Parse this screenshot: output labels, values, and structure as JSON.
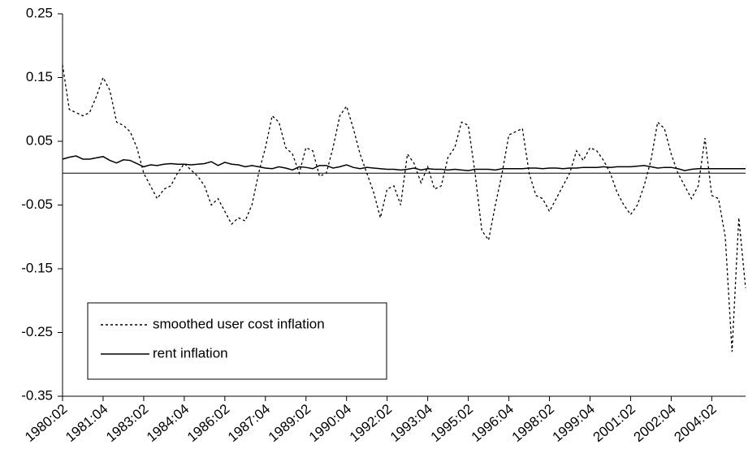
{
  "chart_data": {
    "type": "line",
    "categories": [
      "1980:02",
      null,
      null,
      null,
      null,
      null,
      "1981:04",
      null,
      null,
      null,
      null,
      null,
      "1983:02",
      null,
      null,
      null,
      null,
      null,
      "1984:04",
      null,
      null,
      null,
      null,
      null,
      "1986:02",
      null,
      null,
      null,
      null,
      null,
      "1987:04",
      null,
      null,
      null,
      null,
      null,
      "1989:02",
      null,
      null,
      null,
      null,
      null,
      "1990:04",
      null,
      null,
      null,
      null,
      null,
      "1992:02",
      null,
      null,
      null,
      null,
      null,
      "1993:04",
      null,
      null,
      null,
      null,
      null,
      "1995:02",
      null,
      null,
      null,
      null,
      null,
      "1996:04",
      null,
      null,
      null,
      null,
      null,
      "1998:02",
      null,
      null,
      null,
      null,
      null,
      "1999:04",
      null,
      null,
      null,
      null,
      null,
      "2001:02",
      null,
      null,
      null,
      null,
      null,
      "2002:04",
      null,
      null,
      null,
      null,
      null,
      "2004:02",
      null,
      null,
      null,
      null,
      null
    ],
    "series": [
      {
        "name": "smoothed user cost inflation",
        "color": "#000000",
        "style": "dotted",
        "values": [
          0.17,
          0.1,
          0.095,
          0.09,
          0.095,
          0.12,
          0.15,
          0.13,
          0.08,
          0.075,
          0.065,
          0.04,
          0.0,
          -0.02,
          -0.04,
          -0.025,
          -0.02,
          0.0,
          0.015,
          0.005,
          -0.005,
          -0.02,
          -0.05,
          -0.04,
          -0.06,
          -0.08,
          -0.07,
          -0.075,
          -0.05,
          0.0,
          0.04,
          0.09,
          0.08,
          0.04,
          0.03,
          0.0,
          0.04,
          0.035,
          -0.005,
          0.0,
          0.04,
          0.09,
          0.105,
          0.07,
          0.03,
          0.0,
          -0.03,
          -0.07,
          -0.025,
          -0.02,
          -0.05,
          0.03,
          0.015,
          -0.015,
          0.01,
          -0.025,
          -0.02,
          0.025,
          0.04,
          0.08,
          0.075,
          0.0,
          -0.09,
          -0.105,
          -0.05,
          0.0,
          0.06,
          0.065,
          0.07,
          0.0,
          -0.035,
          -0.04,
          -0.06,
          -0.04,
          -0.02,
          0.0,
          0.035,
          0.02,
          0.04,
          0.035,
          0.02,
          0.0,
          -0.03,
          -0.05,
          -0.065,
          -0.05,
          -0.02,
          0.02,
          0.08,
          0.07,
          0.03,
          0.0,
          -0.02,
          -0.04,
          -0.02,
          0.055,
          -0.035,
          -0.04,
          -0.1,
          -0.28,
          -0.07,
          -0.18
        ]
      },
      {
        "name": "rent inflation",
        "color": "#000000",
        "style": "solid",
        "values": [
          0.022,
          0.025,
          0.027,
          0.022,
          0.022,
          0.024,
          0.026,
          0.02,
          0.016,
          0.021,
          0.02,
          0.015,
          0.01,
          0.013,
          0.012,
          0.014,
          0.015,
          0.014,
          0.014,
          0.013,
          0.014,
          0.015,
          0.018,
          0.012,
          0.017,
          0.014,
          0.013,
          0.01,
          0.012,
          0.01,
          0.008,
          0.007,
          0.01,
          0.008,
          0.005,
          0.01,
          0.009,
          0.007,
          0.012,
          0.012,
          0.008,
          0.01,
          0.013,
          0.009,
          0.007,
          0.009,
          0.008,
          0.007,
          0.006,
          0.006,
          0.005,
          0.006,
          0.008,
          0.005,
          0.007,
          0.006,
          0.006,
          0.005,
          0.006,
          0.005,
          0.004,
          0.006,
          0.006,
          0.006,
          0.005,
          0.007,
          0.007,
          0.007,
          0.007,
          0.008,
          0.008,
          0.007,
          0.008,
          0.008,
          0.007,
          0.008,
          0.008,
          0.009,
          0.009,
          0.009,
          0.01,
          0.009,
          0.01,
          0.01,
          0.01,
          0.011,
          0.012,
          0.01,
          0.008,
          0.009,
          0.009,
          0.007,
          0.004,
          0.006,
          0.007,
          0.007,
          0.007,
          0.007,
          0.007,
          0.007,
          0.007,
          0.007
        ]
      }
    ],
    "ylim": [
      -0.35,
      0.25
    ],
    "yticks": [
      -0.35,
      -0.25,
      -0.15,
      -0.05,
      0.05,
      0.15,
      0.25
    ],
    "grid": false,
    "legend": "lower-left"
  }
}
